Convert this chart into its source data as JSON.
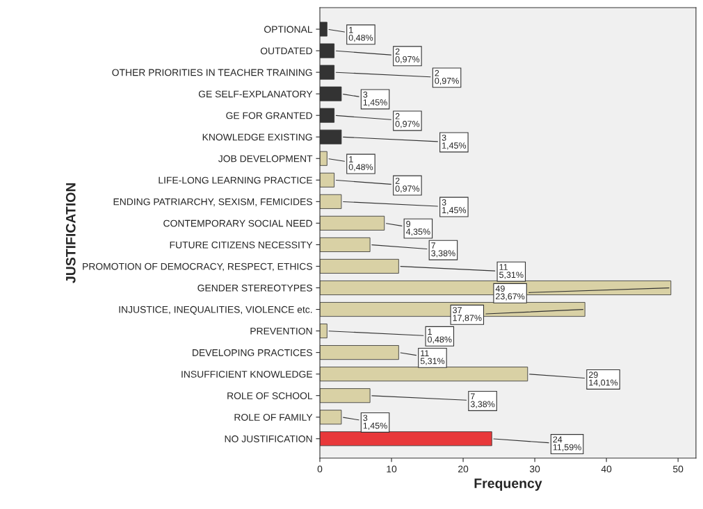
{
  "chart_data": {
    "type": "bar",
    "orientation": "horizontal",
    "xlabel": "Frequency",
    "ylabel": "JUSTIFICATION",
    "categories": [
      "OPTIONAL",
      "OUTDATED",
      "OTHER PRIORITIES IN TEACHER TRAINING",
      "GE SELF-EXPLANATORY",
      "GE FOR GRANTED",
      "KNOWLEDGE EXISTING",
      "JOB DEVELOPMENT",
      "LIFE-LONG LEARNING PRACTICE",
      "ENDING PATRIARCHY, SEXISM, FEMICIDES",
      "CONTEMPORARY SOCIAL NEED",
      "FUTURE CITIZENS NECESSITY",
      "PROMOTION OF DEMOCRACY, RESPECT, ETHICS",
      "GENDER STEREOTYPES",
      "INJUSTICE, INEQUALITIES, VIOLENCE etc.",
      "PREVENTION",
      "DEVELOPING PRACTICES",
      "INSUFFICIENT KNOWLEDGE",
      "ROLE OF SCHOOL",
      "ROLE OF FAMILY",
      "NO JUSTIFICATION"
    ],
    "values": [
      1,
      2,
      2,
      3,
      2,
      3,
      1,
      2,
      3,
      9,
      7,
      11,
      49,
      37,
      1,
      11,
      29,
      7,
      3,
      24
    ],
    "value_labels": [
      "1\n0,48%",
      "2\n0,97%",
      "2\n0,97%",
      "3\n1,45%",
      "2\n0,97%",
      "3\n1,45%",
      "1\n0,48%",
      "2\n0,97%",
      "3\n1,45%",
      "9\n4,35%",
      "7\n3,38%",
      "11\n5,31%",
      "49\n23,67%",
      "37\n17,87%",
      "1\n0,48%",
      "11\n5,31%",
      "29\n14,01%",
      "7\n3,38%",
      "3\n1,45%",
      "24\n11,59%"
    ],
    "colors": [
      "#333333",
      "#333333",
      "#333333",
      "#333333",
      "#333333",
      "#333333",
      "#d9d1a5",
      "#d9d1a5",
      "#d9d1a5",
      "#d9d1a5",
      "#d9d1a5",
      "#d9d1a5",
      "#d9d1a5",
      "#d9d1a5",
      "#d9d1a5",
      "#d9d1a5",
      "#d9d1a5",
      "#d9d1a5",
      "#d9d1a5",
      "#e8383a"
    ],
    "xlim": [
      0,
      52.5
    ],
    "xticks": [
      0,
      10,
      20,
      30,
      40,
      50
    ],
    "grid": false
  }
}
